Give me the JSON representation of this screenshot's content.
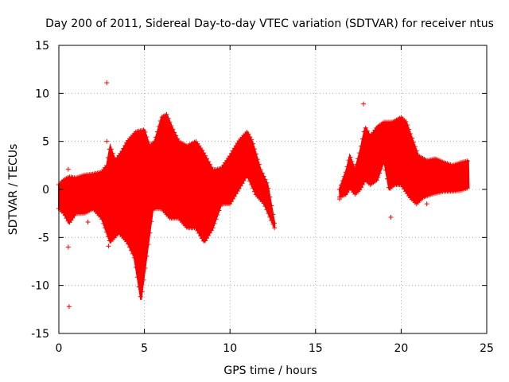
{
  "chart_data": {
    "type": "scatter",
    "title": "Day 200 of 2011, Sidereal Day-to-day VTEC variation (SDTVAR) for receiver ntus",
    "xlabel": "GPS time / hours",
    "ylabel": "SDTVAR / TECUs",
    "xlim": [
      0,
      25
    ],
    "ylim": [
      -15,
      15
    ],
    "x_ticks": [
      0,
      5,
      10,
      15,
      20,
      25
    ],
    "y_ticks": [
      -15,
      -10,
      -5,
      0,
      5,
      10,
      15
    ],
    "x_tick_labels": [
      "0",
      "5",
      "10",
      "15",
      "20",
      "25"
    ],
    "y_tick_labels": [
      "-15",
      "-10",
      "-5",
      "0",
      "5",
      "10",
      "15"
    ],
    "grid": true,
    "marker": "+",
    "color": "#ff0000",
    "series": [
      {
        "name": "SDTVAR",
        "upper_envelope": [
          [
            0.0,
            0.5
          ],
          [
            0.3,
            1.0
          ],
          [
            0.6,
            1.3
          ],
          [
            1.0,
            1.2
          ],
          [
            1.5,
            1.5
          ],
          [
            2.0,
            1.6
          ],
          [
            2.5,
            1.8
          ],
          [
            2.8,
            2.5
          ],
          [
            3.0,
            4.5
          ],
          [
            3.3,
            3.0
          ],
          [
            3.7,
            4.0
          ],
          [
            4.0,
            5.0
          ],
          [
            4.5,
            6.0
          ],
          [
            5.0,
            6.2
          ],
          [
            5.3,
            4.5
          ],
          [
            5.6,
            5.0
          ],
          [
            6.0,
            7.5
          ],
          [
            6.3,
            7.8
          ],
          [
            6.6,
            6.5
          ],
          [
            7.0,
            5.0
          ],
          [
            7.5,
            4.5
          ],
          [
            8.0,
            5.0
          ],
          [
            8.4,
            4.0
          ],
          [
            9.0,
            2.0
          ],
          [
            9.5,
            2.2
          ],
          [
            10.0,
            3.5
          ],
          [
            10.5,
            5.0
          ],
          [
            11.0,
            6.0
          ],
          [
            11.3,
            5.0
          ],
          [
            11.8,
            2.0
          ],
          [
            12.2,
            0.5
          ],
          [
            12.6,
            -3.5
          ]
        ],
        "lower_envelope": [
          [
            0.0,
            -2.0
          ],
          [
            0.3,
            -2.5
          ],
          [
            0.6,
            -3.5
          ],
          [
            1.0,
            -2.5
          ],
          [
            1.5,
            -2.5
          ],
          [
            2.0,
            -2.0
          ],
          [
            2.5,
            -3.0
          ],
          [
            3.0,
            -5.5
          ],
          [
            3.5,
            -4.5
          ],
          [
            4.0,
            -5.5
          ],
          [
            4.4,
            -7.0
          ],
          [
            4.8,
            -11.5
          ],
          [
            5.2,
            -6.0
          ],
          [
            5.5,
            -2.0
          ],
          [
            6.0,
            -2.0
          ],
          [
            6.5,
            -3.0
          ],
          [
            7.0,
            -3.0
          ],
          [
            7.5,
            -4.0
          ],
          [
            8.0,
            -4.0
          ],
          [
            8.5,
            -5.5
          ],
          [
            9.0,
            -4.0
          ],
          [
            9.5,
            -1.5
          ],
          [
            10.0,
            -1.5
          ],
          [
            10.5,
            0.0
          ],
          [
            11.0,
            1.5
          ],
          [
            11.5,
            -0.5
          ],
          [
            12.0,
            -1.5
          ],
          [
            12.6,
            -4.0
          ]
        ],
        "upper_envelope_2": [
          [
            16.4,
            0.0
          ],
          [
            16.8,
            2.0
          ],
          [
            17.0,
            3.5
          ],
          [
            17.3,
            2.0
          ],
          [
            17.6,
            4.0
          ],
          [
            17.9,
            6.5
          ],
          [
            18.2,
            5.5
          ],
          [
            18.6,
            6.5
          ],
          [
            19.0,
            7.0
          ],
          [
            19.5,
            7.0
          ],
          [
            20.0,
            7.5
          ],
          [
            20.3,
            7.0
          ],
          [
            20.7,
            5.0
          ],
          [
            21.0,
            3.5
          ],
          [
            21.5,
            3.0
          ],
          [
            22.0,
            3.2
          ],
          [
            22.5,
            2.8
          ],
          [
            23.0,
            2.5
          ],
          [
            23.5,
            2.8
          ],
          [
            23.95,
            3.0
          ]
        ],
        "lower_envelope_2": [
          [
            16.4,
            -0.8
          ],
          [
            16.8,
            -0.5
          ],
          [
            17.0,
            0.2
          ],
          [
            17.3,
            -0.5
          ],
          [
            17.6,
            0.0
          ],
          [
            17.9,
            1.0
          ],
          [
            18.2,
            0.5
          ],
          [
            18.6,
            1.0
          ],
          [
            19.0,
            3.0
          ],
          [
            19.3,
            0.0
          ],
          [
            19.6,
            0.5
          ],
          [
            20.0,
            0.5
          ],
          [
            20.5,
            -0.8
          ],
          [
            20.9,
            -1.5
          ],
          [
            21.3,
            -0.8
          ],
          [
            21.8,
            -0.5
          ],
          [
            22.5,
            -0.2
          ],
          [
            23.0,
            -0.2
          ],
          [
            23.5,
            -0.1
          ],
          [
            23.95,
            0.2
          ]
        ],
        "outliers": [
          [
            2.8,
            11.1
          ],
          [
            0.6,
            -12.2
          ],
          [
            0.55,
            -6.0
          ],
          [
            1.7,
            -3.4
          ],
          [
            2.9,
            -5.9
          ],
          [
            2.95,
            -3.8
          ],
          [
            17.8,
            8.9
          ],
          [
            19.4,
            -2.9
          ],
          [
            21.5,
            -1.5
          ],
          [
            0.55,
            2.1
          ],
          [
            16.4,
            -1.0
          ],
          [
            2.8,
            5.0
          ]
        ]
      }
    ]
  }
}
